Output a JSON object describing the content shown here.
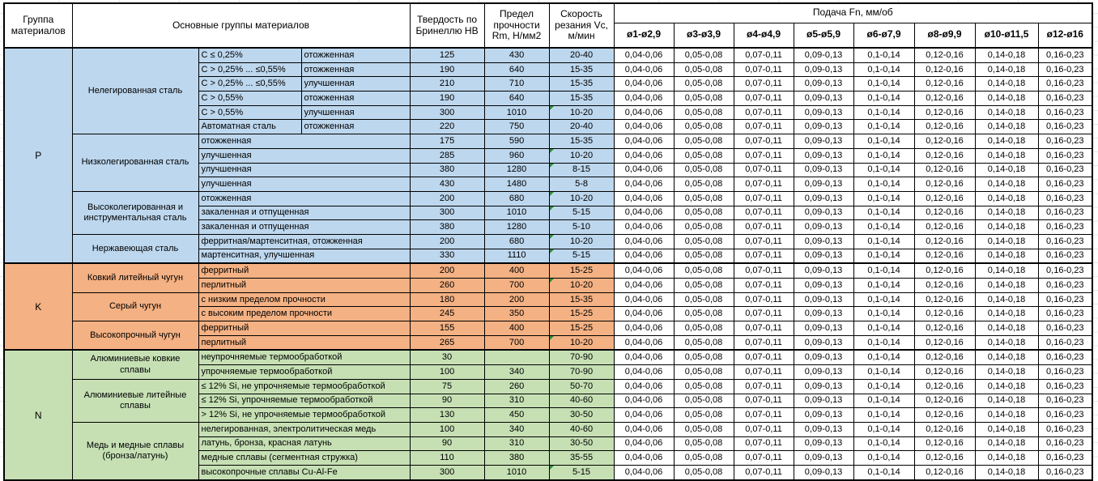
{
  "header": {
    "group_col": "Группа материалов",
    "materials_col": "Основные группы материалов",
    "hardness_col": "Твердость по Бринеллю HB",
    "strength_col": "Предел прочности Rm, Н/мм2",
    "speed_col": "Скорость резания Vc, м/мин",
    "feed_title": "Подача Fn, мм/об",
    "feed_cols": [
      "ø1-ø2,9",
      "ø3-ø3,9",
      "ø4-ø4,9",
      "ø5-ø5,9",
      "ø6-ø7,9",
      "ø8-ø9,9",
      "ø10-ø11,5",
      "ø12-ø16"
    ]
  },
  "feed_values": [
    "0,04-0,06",
    "0,05-0,08",
    "0,07-0,11",
    "0,09-0,13",
    "0,1-0,14",
    "0,12-0,16",
    "0,14-0,18",
    "0,16-0,23"
  ],
  "colors": {
    "group_p": "#BDD7EE",
    "group_k": "#F4B183",
    "group_n": "#C6E0B4",
    "flag_triangle": "#2E8B3C",
    "border": "#000000"
  },
  "groups": [
    {
      "code": "P",
      "color": "#BDD7EE",
      "subgroups": [
        {
          "label": "Нелегированная сталь",
          "rows": [
            {
              "m1": "C ≤ 0,25%",
              "m2": "отожженная",
              "hb": "125",
              "rm": "430",
              "vc": "20-40",
              "flag": false
            },
            {
              "m1": "C > 0,25% ... ≤0,55%",
              "m2": "отожженная",
              "hb": "190",
              "rm": "640",
              "vc": "15-35",
              "flag": false
            },
            {
              "m1": "C > 0,25% ... ≤0,55%",
              "m2": "улучшенная",
              "hb": "210",
              "rm": "710",
              "vc": "15-35",
              "flag": false
            },
            {
              "m1": "C > 0,55%",
              "m2": "отожженная",
              "hb": "190",
              "rm": "640",
              "vc": "15-35",
              "flag": false
            },
            {
              "m1": "C > 0,55%",
              "m2": "улучшенная",
              "hb": "300",
              "rm": "1010",
              "vc": "10-20",
              "flag": true
            },
            {
              "m1": "Автоматная сталь",
              "m2": "отожженная",
              "hb": "220",
              "rm": "750",
              "vc": "20-40",
              "flag": false
            }
          ]
        },
        {
          "label": "Низколегированная сталь",
          "rows": [
            {
              "m1": "отожженная",
              "m2": null,
              "hb": "175",
              "rm": "590",
              "vc": "15-35",
              "flag": false
            },
            {
              "m1": "улучшенная",
              "m2": null,
              "hb": "285",
              "rm": "960",
              "vc": "10-20",
              "flag": true
            },
            {
              "m1": "улучшенная",
              "m2": null,
              "hb": "380",
              "rm": "1280",
              "vc": "8-15",
              "flag": true
            },
            {
              "m1": "улучшенная",
              "m2": null,
              "hb": "430",
              "rm": "1480",
              "vc": "5-8",
              "flag": false
            }
          ]
        },
        {
          "label": "Высоколегированная и инструментальная сталь",
          "rows": [
            {
              "m1": "отожженная",
              "m2": null,
              "hb": "200",
              "rm": "680",
              "vc": "10-20",
              "flag": true
            },
            {
              "m1": "закаленная и отпущенная",
              "m2": null,
              "hb": "300",
              "rm": "1010",
              "vc": "5-15",
              "flag": true
            },
            {
              "m1": "закаленная и отпущенная",
              "m2": null,
              "hb": "380",
              "rm": "1280",
              "vc": "5-10",
              "flag": false
            }
          ]
        },
        {
          "label": "Нержавеющая сталь",
          "rows": [
            {
              "m1": "ферритная/мартенситная, отожженная",
              "m2": null,
              "hb": "200",
              "rm": "680",
              "vc": "10-20",
              "flag": true
            },
            {
              "m1": "мартенситная, улучшенная",
              "m2": null,
              "hb": "330",
              "rm": "1110",
              "vc": "5-15",
              "flag": true
            }
          ]
        }
      ]
    },
    {
      "code": "K",
      "color": "#F4B183",
      "subgroups": [
        {
          "label": "Ковкий литейный чугун",
          "rows": [
            {
              "m1": "ферритный",
              "m2": null,
              "hb": "200",
              "rm": "400",
              "vc": "15-25",
              "flag": false
            },
            {
              "m1": "перлитный",
              "m2": null,
              "hb": "260",
              "rm": "700",
              "vc": "10-20",
              "flag": true
            }
          ]
        },
        {
          "label": "Серый чугун",
          "rows": [
            {
              "m1": "с низким пределом прочности",
              "m2": null,
              "hb": "180",
              "rm": "200",
              "vc": "15-35",
              "flag": false
            },
            {
              "m1": "с высоким пределом прочности",
              "m2": null,
              "hb": "245",
              "rm": "350",
              "vc": "15-25",
              "flag": false
            }
          ]
        },
        {
          "label": "Высокопрочный чугун",
          "rows": [
            {
              "m1": "ферритный",
              "m2": null,
              "hb": "155",
              "rm": "400",
              "vc": "15-25",
              "flag": false
            },
            {
              "m1": "перлитный",
              "m2": null,
              "hb": "265",
              "rm": "700",
              "vc": "10-20",
              "flag": true
            }
          ]
        }
      ]
    },
    {
      "code": "N",
      "color": "#C6E0B4",
      "subgroups": [
        {
          "label": "Алюминиевые ковкие сплавы",
          "rows": [
            {
              "m1": "неупрочняемые термообработкой",
              "m2": null,
              "hb": "30",
              "rm": "",
              "vc": "70-90",
              "flag": false
            },
            {
              "m1": "упрочняемые термообработкой",
              "m2": null,
              "hb": "100",
              "rm": "340",
              "vc": "70-90",
              "flag": false
            }
          ]
        },
        {
          "label": "Алюминиевые литейные сплавы",
          "rows": [
            {
              "m1": "≤ 12% Si, не упрочняемые термообработкой",
              "m2": null,
              "hb": "75",
              "rm": "260",
              "vc": "50-70",
              "flag": false
            },
            {
              "m1": "≤ 12% Si, упрочняемые термообработкой",
              "m2": null,
              "hb": "90",
              "rm": "310",
              "vc": "40-60",
              "flag": false
            },
            {
              "m1": "> 12% Si, не упрочняемые термообработкой",
              "m2": null,
              "hb": "130",
              "rm": "450",
              "vc": "30-50",
              "flag": false
            }
          ]
        },
        {
          "label": "Медь и медные сплавы (бронза/латунь)",
          "rows": [
            {
              "m1": "нелегированная, электролитическая медь",
              "m2": null,
              "hb": "100",
              "rm": "340",
              "vc": "40-60",
              "flag": false
            },
            {
              "m1": "латунь, бронза, красная латунь",
              "m2": null,
              "hb": "90",
              "rm": "310",
              "vc": "30-50",
              "flag": false
            },
            {
              "m1": "медные сплавы (сегментная стружка)",
              "m2": null,
              "hb": "110",
              "rm": "380",
              "vc": "35-55",
              "flag": false
            },
            {
              "m1": "высокопрочные сплавы Cu-Al-Fe",
              "m2": null,
              "hb": "300",
              "rm": "1010",
              "vc": "5-15",
              "flag": true
            }
          ]
        }
      ]
    }
  ]
}
